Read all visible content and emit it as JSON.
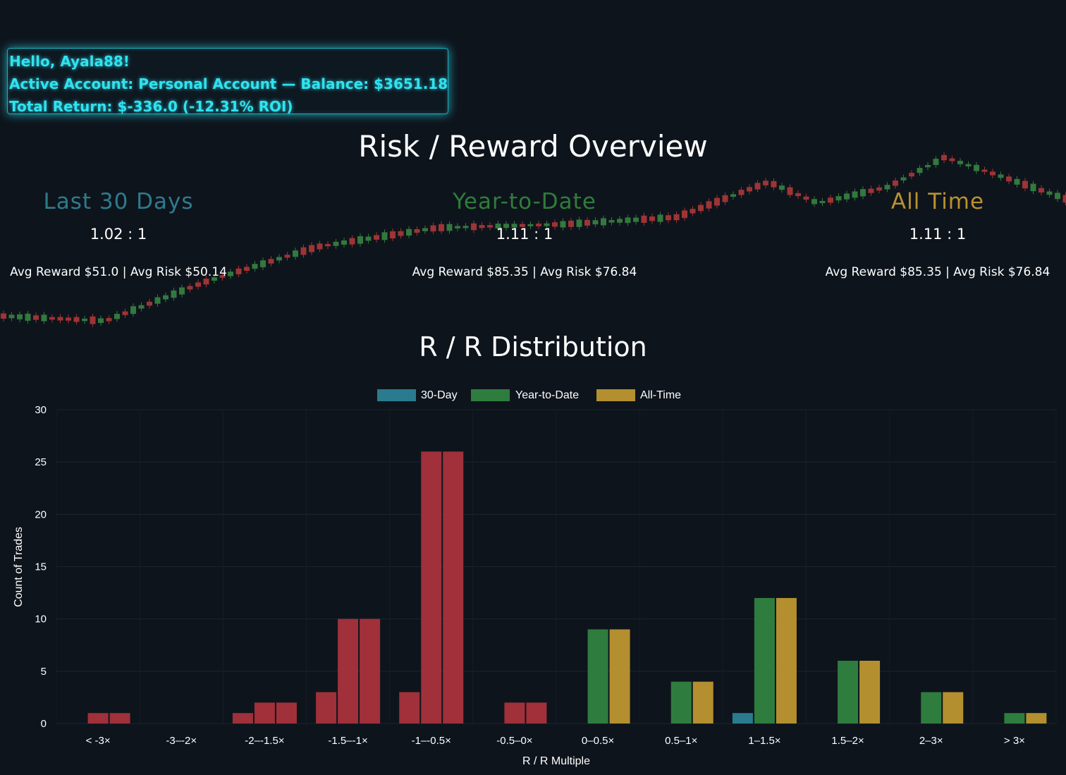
{
  "greeting": {
    "hello": "Hello, Ayala88!",
    "account": "Active Account: Personal Account — Balance: $3651.18",
    "return": "Total Return: $-336.0 (-12.31% ROI)"
  },
  "overview": {
    "title": "Risk / Reward Overview",
    "periods": [
      {
        "label": "Last 30 Days",
        "ratio": "1.02 : 1",
        "avg": "Avg Reward $51.0 | Avg Risk $50.14",
        "color": "#2e7b8c"
      },
      {
        "label": "Year-to-Date",
        "ratio": "1.11 : 1",
        "avg": "Avg Reward $85.35 | Avg Risk $76.84",
        "color": "#2e7d3a"
      },
      {
        "label": "All Time",
        "ratio": "1.11 : 1",
        "avg": "Avg Reward $85.35 | Avg Risk $76.84",
        "color": "#b8912e"
      }
    ]
  },
  "distribution": {
    "title": "R / R Distribution"
  },
  "chart_data": {
    "type": "bar",
    "xlabel": "R / R Multiple",
    "ylabel": "Count of Trades",
    "ylim": [
      0,
      30
    ],
    "yticks": [
      0,
      5,
      10,
      15,
      20,
      25,
      30
    ],
    "legend_position": "top-center",
    "categories": [
      "< -3×",
      "-3–-2×",
      "-2–-1.5×",
      "-1.5–-1×",
      "-1–-0.5×",
      "-0.5–0×",
      "0–0.5×",
      "0.5–1×",
      "1–1.5×",
      "1.5–2×",
      "2–3×",
      "> 3×"
    ],
    "series": [
      {
        "name": "30-Day",
        "color": "#2a7b8e",
        "values": [
          0,
          0,
          1,
          3,
          3,
          0,
          0,
          0,
          1,
          0,
          0,
          0
        ]
      },
      {
        "name": "Year-to-Date",
        "color": "#2e7d3e",
        "values": [
          1,
          0,
          2,
          10,
          26,
          2,
          9,
          4,
          12,
          6,
          3,
          1
        ]
      },
      {
        "name": "All-Time",
        "color": "#b38f2f",
        "values": [
          1,
          0,
          2,
          10,
          26,
          2,
          9,
          4,
          12,
          6,
          3,
          1
        ]
      }
    ],
    "loss_color": "#a0303a",
    "loss_categories": [
      0,
      1,
      2,
      3,
      4,
      5
    ],
    "grid": true
  }
}
